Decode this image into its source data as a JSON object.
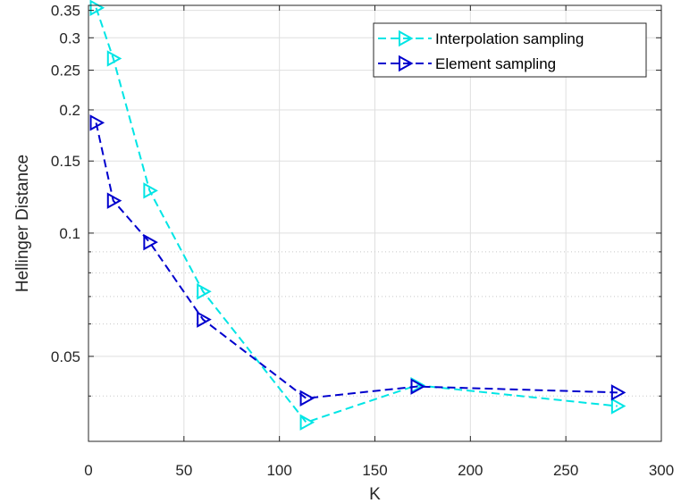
{
  "chart_data": {
    "type": "line",
    "title": "",
    "xlabel": "K",
    "ylabel": "Hellinger Distance",
    "xlim": [
      0,
      300
    ],
    "ylim": [
      0.031,
      0.36
    ],
    "y_scale": "log",
    "grid": true,
    "legend_position": "top-right",
    "x_ticks": [
      0,
      50,
      100,
      150,
      200,
      250,
      300
    ],
    "x_tick_labels": [
      "0",
      "50",
      "100",
      "150",
      "200",
      "250",
      "300"
    ],
    "y_ticks_labeled": [
      0.05,
      0.1,
      0.15,
      0.2,
      0.25,
      0.3,
      0.35
    ],
    "y_tick_labels": [
      "0.05",
      "0.1",
      "0.15",
      "0.2",
      "0.25",
      "0.3",
      "0.35"
    ],
    "y_ticks_minor": [
      0.04,
      0.06,
      0.07,
      0.08,
      0.09
    ],
    "x": [
      4,
      13,
      32,
      60,
      114,
      172,
      277
    ],
    "series": [
      {
        "name": "Interpolation sampling",
        "color": "#00e5e5",
        "marker": "triangle-right",
        "line_style": "dashed",
        "values": [
          0.355,
          0.267,
          0.127,
          0.072,
          0.0345,
          0.0425,
          0.0378
        ]
      },
      {
        "name": "Element sampling",
        "color": "#0000cd",
        "marker": "triangle-right",
        "line_style": "dashed",
        "values": [
          0.186,
          0.12,
          0.095,
          0.0615,
          0.0395,
          0.0422,
          0.0408
        ]
      }
    ]
  }
}
